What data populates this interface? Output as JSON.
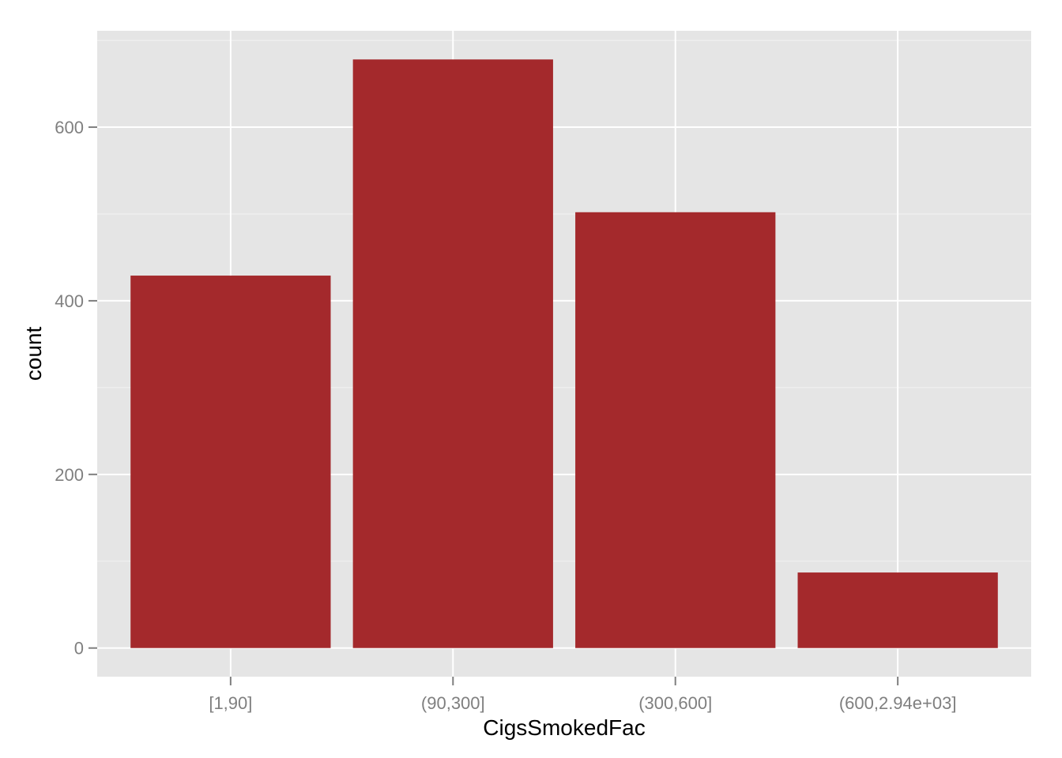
{
  "chart_data": {
    "type": "bar",
    "xlabel": "CigsSmokedFac",
    "ylabel": "count",
    "categories": [
      "[1,90]",
      "(90,300]",
      "(300,600]",
      "(600,2.94e+03]"
    ],
    "values": [
      429,
      678,
      502,
      87
    ],
    "ylim": [
      -33,
      711
    ],
    "yticks": [
      0,
      200,
      400,
      600
    ],
    "yticks_minor": [
      100,
      300,
      500,
      700
    ],
    "grid": true,
    "legend": "none",
    "colors": {
      "bar": "#A4292C",
      "panel": "#E5E5E5",
      "grid_major": "#FFFFFF",
      "grid_minor": "#F2F2F2",
      "tick_label": "#7F7F7F"
    }
  }
}
